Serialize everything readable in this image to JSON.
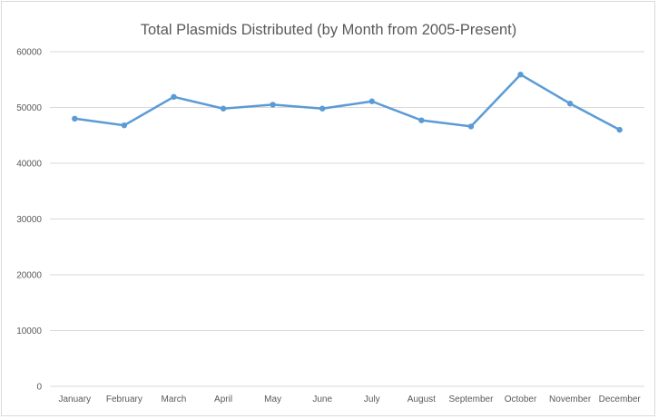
{
  "chart_data": {
    "type": "line",
    "title": "Total Plasmids Distributed (by Month from 2005-Present)",
    "xlabel": "",
    "ylabel": "",
    "categories": [
      "January",
      "February",
      "March",
      "April",
      "May",
      "June",
      "July",
      "August",
      "September",
      "October",
      "November",
      "December"
    ],
    "series": [
      {
        "values": [
          48000,
          46800,
          51900,
          49800,
          50500,
          49800,
          51100,
          47700,
          46600,
          55900,
          50700,
          46000
        ]
      }
    ],
    "ylim": [
      0,
      60000
    ],
    "yticks": [
      "0",
      "10000",
      "20000",
      "30000",
      "40000",
      "50000",
      "60000"
    ],
    "grid": true,
    "legend": "none",
    "colors": {
      "line": "#5b9bd5",
      "grid": "#d9d9d9",
      "text": "#595959"
    }
  }
}
